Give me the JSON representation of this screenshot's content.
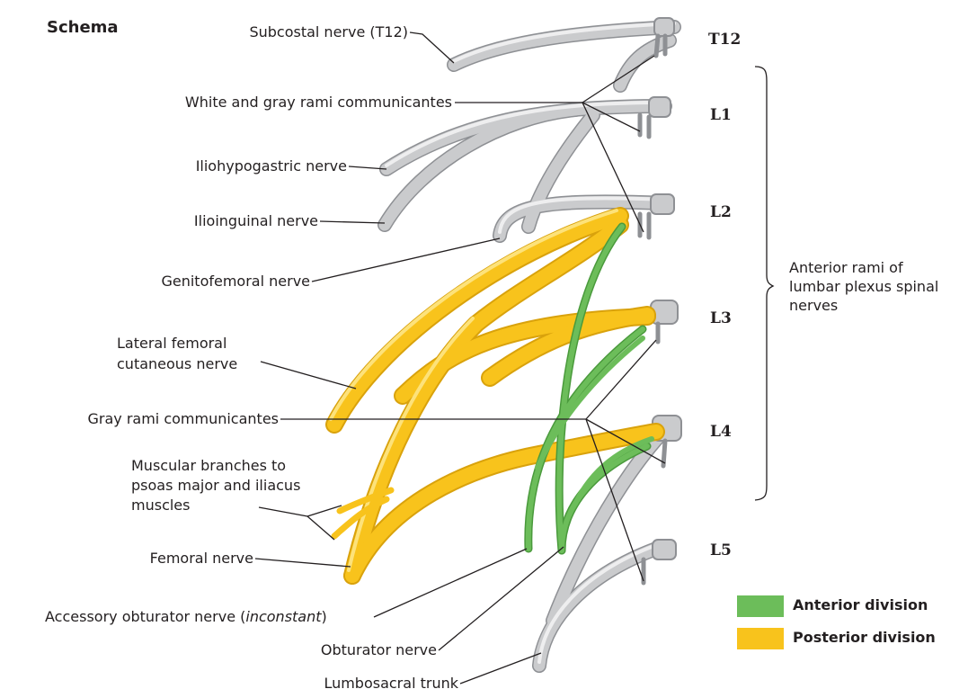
{
  "title": "Schema",
  "levels": [
    "T12",
    "L1",
    "L2",
    "L3",
    "L4",
    "L5"
  ],
  "labels": {
    "subcostal": "Subcostal nerve (T12)",
    "rami_wg": "White and gray rami communicantes",
    "iliohypogastric": "Iliohypogastric nerve",
    "ilioinguinal": "Ilioinguinal nerve",
    "genitofemoral": "Genitofemoral nerve",
    "lateral_femoral": "Lateral femoral cutaneous nerve",
    "gray_rami": "Gray rami communicantes",
    "muscular": "Muscular branches to psoas major and iliacus muscles",
    "femoral": "Femoral nerve",
    "accessory_obturator": "Accessory obturator nerve",
    "accessory_obturator_note": "inconstant",
    "obturator": "Obturator nerve",
    "lumbosacral": "Lumbosacral trunk",
    "anterior_rami": "Anterior rami of lumbar plexus spinal nerves"
  },
  "legend": [
    {
      "label": "Anterior division",
      "color": "#6cbd5a"
    },
    {
      "label": "Posterior division",
      "color": "#f8c31c"
    }
  ],
  "colors": {
    "nerve_gray": "#c8c9cb",
    "anterior_division": "#6cbd5a",
    "posterior_division": "#f8c31c",
    "leader": "#231f20"
  }
}
